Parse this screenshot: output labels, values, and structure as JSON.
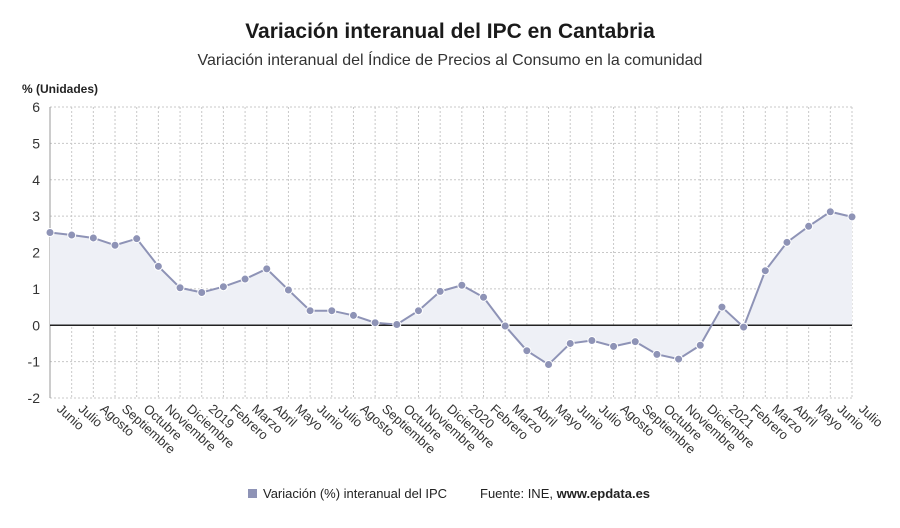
{
  "title": "Variación interanual del IPC en Cantabria",
  "subtitle": "Variación interanual del Índice de Precios al Consumo en la comunidad",
  "chart_data": {
    "type": "line",
    "title": "Variación interanual del IPC en Cantabria",
    "subtitle": "Variación interanual del Índice de Precios al Consumo en la comunidad",
    "ylabel": "% (Unidades)",
    "xlabel": "",
    "ylim": [
      -2,
      6
    ],
    "yticks": [
      -2,
      -1,
      0,
      1,
      2,
      3,
      4,
      5,
      6
    ],
    "grid": true,
    "legend_position": "bottom",
    "categories": [
      "Junio",
      "Julio",
      "Agosto",
      "Septiembre",
      "Octubre",
      "Noviembre",
      "Diciembre",
      "2019",
      "Febrero",
      "Marzo",
      "Abril",
      "Mayo",
      "Junio",
      "Julio",
      "Agosto",
      "Septiembre",
      "Octubre",
      "Noviembre",
      "Diciembre",
      "2020",
      "Febrero",
      "Marzo",
      "Abril",
      "Mayo",
      "Junio",
      "Julio",
      "Agosto",
      "Septiembre",
      "Octubre",
      "Noviembre",
      "Diciembre",
      "2021",
      "Febrero",
      "Marzo",
      "Abril",
      "Mayo",
      "Junio",
      "Julio"
    ],
    "series": [
      {
        "name": "Variación (%) interanual del IPC",
        "color": "#8e93b6",
        "values": [
          2.55,
          2.48,
          2.4,
          2.2,
          2.38,
          1.62,
          1.03,
          0.9,
          1.06,
          1.27,
          1.55,
          0.97,
          0.4,
          0.4,
          0.27,
          0.07,
          0.02,
          0.4,
          0.93,
          1.1,
          0.77,
          -0.02,
          -0.7,
          -1.08,
          -0.5,
          -0.42,
          -0.58,
          -0.45,
          -0.8,
          -0.93,
          -0.55,
          0.5,
          -0.05,
          1.5,
          2.28,
          2.72,
          3.12,
          2.98
        ]
      }
    ]
  },
  "legend": {
    "label": "Variación (%) interanual del IPC"
  },
  "source": {
    "prefix": "Fuente: INE, ",
    "site": "www.epdata.es"
  },
  "colors": {
    "line": "#8e93b6",
    "fill": "#eef0f6",
    "zero_line": "#222222",
    "grid": "#c8c8c8"
  }
}
